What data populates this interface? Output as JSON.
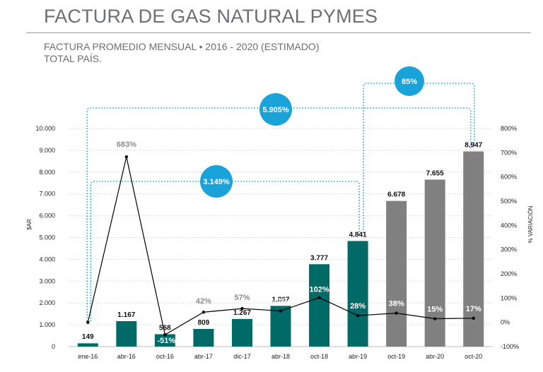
{
  "header": {
    "title": "FACTURA DE GAS NATURAL PYMES",
    "subtitle_line1": "FACTURA PROMEDIO MENSUAL •  2016 - 2020 (ESTIMADO)",
    "subtitle_line2": "TOTAL PAÍS."
  },
  "colors": {
    "teal": "#006b66",
    "gray_bar": "#808080",
    "bubble": "#1aa3d9",
    "line": "#000000",
    "pct_gray": "#8c8c8c",
    "grid": "#cccccc"
  },
  "chart_data": {
    "type": "bar",
    "categories": [
      "ene-16",
      "abr-16",
      "oct-16",
      "abr-17",
      "dic-17",
      "abr-18",
      "oct-18",
      "abr-19",
      "oct-19",
      "abr-20",
      "oct-20"
    ],
    "series": [
      {
        "axis": "left",
        "type": "bar",
        "values": [
          149,
          1167,
          568,
          809,
          1267,
          1867,
          3777,
          4841,
          6678,
          7655,
          8947
        ],
        "value_labels": [
          "149",
          "1.167",
          "568",
          "809",
          "1.267",
          "1.867",
          "3.777",
          "4.841",
          "6.678",
          "7.655",
          "8.947"
        ],
        "colors": [
          "#006b66",
          "#006b66",
          "#006b66",
          "#006b66",
          "#006b66",
          "#006b66",
          "#006b66",
          "#006b66",
          "#808080",
          "#808080",
          "#808080"
        ]
      },
      {
        "axis": "right",
        "type": "line",
        "values": [
          0,
          683,
          -51,
          42,
          57,
          47,
          102,
          28,
          38,
          15,
          17
        ],
        "value_labels": [
          "",
          "683%",
          "-51%",
          "42%",
          "57%",
          "47%",
          "102%",
          "28%",
          "38%",
          "15%",
          "17%"
        ]
      }
    ],
    "ylabel": "$AR",
    "ylabel_right": "% VARIACIÓN",
    "ylim": [
      0,
      10000
    ],
    "ylim_right": [
      -100,
      800
    ],
    "y_ticks": [
      "0",
      "1.000",
      "2.000",
      "3.000",
      "4.000",
      "5.000",
      "6.000",
      "7.000",
      "8.000",
      "9.000",
      "10.000"
    ],
    "y_ticks_right": [
      "-100%",
      "0%",
      "100%",
      "200%",
      "300%",
      "400%",
      "500%",
      "600%",
      "700%",
      "800%"
    ],
    "grid": true,
    "annotations": [
      {
        "label": "85%",
        "from": "abr-19",
        "to": "oct-20"
      },
      {
        "label": "5.905%",
        "from": "ene-16",
        "to": "oct-20"
      },
      {
        "label": "3.149%",
        "from": "ene-16",
        "to": "abr-19"
      }
    ]
  }
}
